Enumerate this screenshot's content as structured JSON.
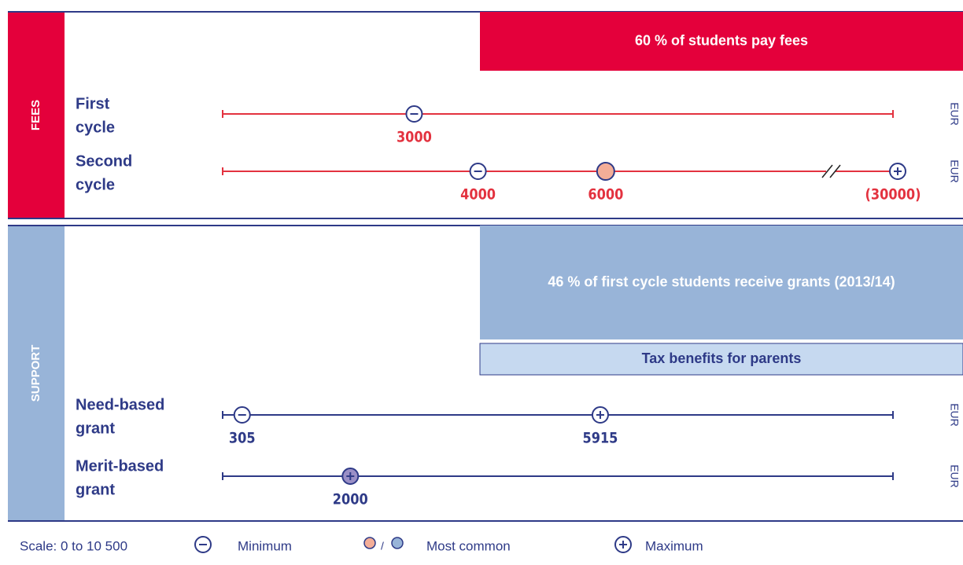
{
  "chart_data": {
    "type": "dot-range",
    "xlim": [
      0,
      10500
    ],
    "unit": "EUR",
    "sections": [
      {
        "name": "FEES",
        "color": "#e4003b",
        "line_color": "#e3323f",
        "banners": [
          {
            "text": "60 % of students pay fees",
            "color": "#e4003b",
            "text_color": "#ffffff"
          }
        ],
        "rows": [
          {
            "label": [
              "First",
              "cycle"
            ],
            "values": [
              3000
            ],
            "kinds": [
              "min"
            ],
            "value_labels": [
              "3000"
            ]
          },
          {
            "label": [
              "Second",
              "cycle"
            ],
            "values": [
              4000,
              6000,
              30000
            ],
            "kinds": [
              "min",
              "common",
              "max"
            ],
            "value_labels": [
              "4000",
              "6000",
              "(30000)"
            ],
            "break": true
          }
        ]
      },
      {
        "name": "SUPPORT",
        "color": "#98b4d8",
        "line_color": "#2e3a87",
        "banners": [
          {
            "text": "46 % of first cycle students receive grants (2013/14)",
            "color": "#98b4d8",
            "text_color": "#ffffff"
          },
          {
            "text": "Tax benefits for parents",
            "color": "#c6d9f0",
            "text_color": "#2e3a87"
          }
        ],
        "rows": [
          {
            "label": [
              "Need-based",
              "grant"
            ],
            "values": [
              305,
              5915
            ],
            "kinds": [
              "min",
              "max"
            ],
            "value_labels": [
              "305",
              "5915"
            ]
          },
          {
            "label": [
              "Merit-based",
              "grant"
            ],
            "values": [
              2000
            ],
            "kinds": [
              "max-common"
            ],
            "value_labels": [
              "2000"
            ]
          }
        ]
      }
    ],
    "legend": {
      "scale": "Scale: 0 to 10 500",
      "min": "Minimum",
      "separator": "/",
      "common": "Most common",
      "max": "Maximum"
    }
  }
}
